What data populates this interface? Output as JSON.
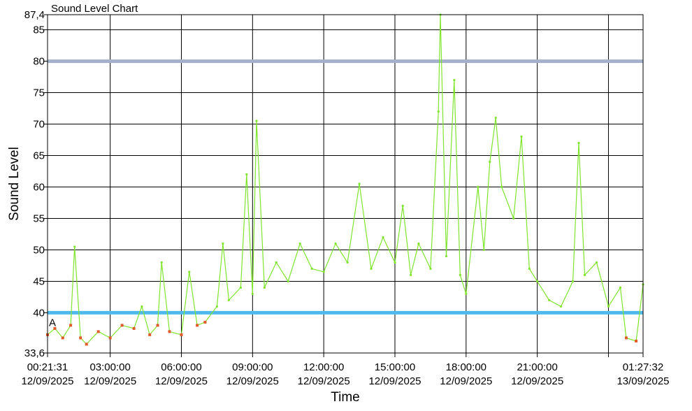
{
  "chart_data": {
    "type": "line",
    "title": "Sound Level Chart",
    "xlabel": "Time",
    "ylabel": "Sound Level",
    "ylim": [
      33.6,
      87.4
    ],
    "y_ticks": [
      {
        "value": 87.4,
        "label": "87,4"
      },
      {
        "value": 85,
        "label": "85"
      },
      {
        "value": 80,
        "label": "80"
      },
      {
        "value": 75,
        "label": "75"
      },
      {
        "value": 70,
        "label": "70"
      },
      {
        "value": 65,
        "label": "65"
      },
      {
        "value": 60,
        "label": "60"
      },
      {
        "value": 55,
        "label": "55"
      },
      {
        "value": 50,
        "label": "50"
      },
      {
        "value": 45,
        "label": "45"
      },
      {
        "value": 40,
        "label": "40"
      },
      {
        "value": 33.6,
        "label": "33,6"
      }
    ],
    "xlim": [
      "2025-09-12T00:21:31",
      "2025-09-13T01:27:32"
    ],
    "x_ticks": [
      {
        "time": "2025-09-12T00:21:31",
        "line1": "00:21:31",
        "line2": "12/09/2025"
      },
      {
        "time": "2025-09-12T03:00:00",
        "line1": "03:00:00",
        "line2": "12/09/2025"
      },
      {
        "time": "2025-09-12T06:00:00",
        "line1": "06:00:00",
        "line2": "12/09/2025"
      },
      {
        "time": "2025-09-12T09:00:00",
        "line1": "09:00:00",
        "line2": "12/09/2025"
      },
      {
        "time": "2025-09-12T12:00:00",
        "line1": "12:00:00",
        "line2": "12/09/2025"
      },
      {
        "time": "2025-09-12T15:00:00",
        "line1": "15:00:00",
        "line2": "12/09/2025"
      },
      {
        "time": "2025-09-12T18:00:00",
        "line1": "18:00:00",
        "line2": "12/09/2025"
      },
      {
        "time": "2025-09-12T21:00:00",
        "line1": "21:00:00",
        "line2": "12/09/2025"
      },
      {
        "time": "2025-09-13T00:00:00",
        "line1": "",
        "line2": ""
      },
      {
        "time": "2025-09-13T01:27:32",
        "line1": "01:27:32",
        "line2": "13/09/2025"
      }
    ],
    "grid": true,
    "threshold_lines": [
      {
        "value": 80,
        "color": "#a3b1cc"
      },
      {
        "value": 40,
        "color": "#4fb8ec"
      }
    ],
    "marker_label": "A",
    "series": [
      {
        "color": "#7ee52c",
        "marker_color": "#e05a2a",
        "points": [
          [
            "2025-09-12T00:21:31",
            36.5
          ],
          [
            "2025-09-12T00:40:00",
            37.5
          ],
          [
            "2025-09-12T01:00:00",
            36.0
          ],
          [
            "2025-09-12T01:20:00",
            38.0
          ],
          [
            "2025-09-12T01:30:00",
            50.5
          ],
          [
            "2025-09-12T01:45:00",
            36.0
          ],
          [
            "2025-09-12T02:00:00",
            35.0
          ],
          [
            "2025-09-12T02:30:00",
            37.0
          ],
          [
            "2025-09-12T03:00:00",
            36.0
          ],
          [
            "2025-09-12T03:30:00",
            38.0
          ],
          [
            "2025-09-12T04:00:00",
            37.5
          ],
          [
            "2025-09-12T04:20:00",
            41.0
          ],
          [
            "2025-09-12T04:40:00",
            36.5
          ],
          [
            "2025-09-12T05:00:00",
            38.0
          ],
          [
            "2025-09-12T05:10:00",
            48.0
          ],
          [
            "2025-09-12T05:30:00",
            37.0
          ],
          [
            "2025-09-12T06:00:00",
            36.5
          ],
          [
            "2025-09-12T06:20:00",
            46.5
          ],
          [
            "2025-09-12T06:40:00",
            38.0
          ],
          [
            "2025-09-12T07:00:00",
            38.5
          ],
          [
            "2025-09-12T07:30:00",
            41.0
          ],
          [
            "2025-09-12T07:45:00",
            51.0
          ],
          [
            "2025-09-12T08:00:00",
            42.0
          ],
          [
            "2025-09-12T08:30:00",
            44.0
          ],
          [
            "2025-09-12T08:45:00",
            62.0
          ],
          [
            "2025-09-12T09:00:00",
            43.0
          ],
          [
            "2025-09-12T09:10:00",
            70.5
          ],
          [
            "2025-09-12T09:30:00",
            44.0
          ],
          [
            "2025-09-12T10:00:00",
            48.0
          ],
          [
            "2025-09-12T10:30:00",
            45.0
          ],
          [
            "2025-09-12T11:00:00",
            51.0
          ],
          [
            "2025-09-12T11:30:00",
            47.0
          ],
          [
            "2025-09-12T12:00:00",
            46.5
          ],
          [
            "2025-09-12T12:30:00",
            51.0
          ],
          [
            "2025-09-12T13:00:00",
            48.0
          ],
          [
            "2025-09-12T13:30:00",
            60.5
          ],
          [
            "2025-09-12T14:00:00",
            47.0
          ],
          [
            "2025-09-12T14:30:00",
            52.0
          ],
          [
            "2025-09-12T15:00:00",
            48.0
          ],
          [
            "2025-09-12T15:20:00",
            57.0
          ],
          [
            "2025-09-12T15:40:00",
            46.0
          ],
          [
            "2025-09-12T16:00:00",
            51.0
          ],
          [
            "2025-09-12T16:30:00",
            47.0
          ],
          [
            "2025-09-12T16:50:00",
            72.0
          ],
          [
            "2025-09-12T16:55:00",
            87.4
          ],
          [
            "2025-09-12T17:10:00",
            49.0
          ],
          [
            "2025-09-12T17:30:00",
            77.0
          ],
          [
            "2025-09-12T17:45:00",
            46.0
          ],
          [
            "2025-09-12T18:00:00",
            43.0
          ],
          [
            "2025-09-12T18:30:00",
            60.0
          ],
          [
            "2025-09-12T18:45:00",
            50.0
          ],
          [
            "2025-09-12T19:00:00",
            64.0
          ],
          [
            "2025-09-12T19:15:00",
            71.0
          ],
          [
            "2025-09-12T19:30:00",
            60.0
          ],
          [
            "2025-09-12T20:00:00",
            55.0
          ],
          [
            "2025-09-12T20:20:00",
            68.0
          ],
          [
            "2025-09-12T20:40:00",
            47.0
          ],
          [
            "2025-09-12T21:00:00",
            45.0
          ],
          [
            "2025-09-12T21:30:00",
            42.0
          ],
          [
            "2025-09-12T22:00:00",
            41.0
          ],
          [
            "2025-09-12T22:30:00",
            45.0
          ],
          [
            "2025-09-12T22:45:00",
            67.0
          ],
          [
            "2025-09-12T23:00:00",
            46.0
          ],
          [
            "2025-09-12T23:30:00",
            48.0
          ],
          [
            "2025-09-13T00:00:00",
            41.0
          ],
          [
            "2025-09-13T00:30:00",
            44.0
          ],
          [
            "2025-09-13T00:45:00",
            36.0
          ],
          [
            "2025-09-13T01:10:00",
            35.5
          ],
          [
            "2025-09-13T01:27:32",
            44.5
          ]
        ]
      }
    ]
  }
}
